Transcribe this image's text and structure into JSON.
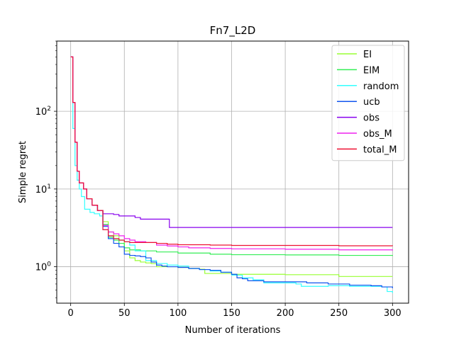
{
  "chart_data": {
    "type": "line",
    "title": "Fn7_L2D",
    "xlabel": "Number of iterations",
    "ylabel": "Simple regret",
    "xlim": [
      -13,
      315
    ],
    "ylim": [
      0.34,
      800
    ],
    "yscale": "log",
    "grid": true,
    "legend_position": "top-right",
    "x_ticks": [
      0,
      50,
      100,
      150,
      200,
      250,
      300
    ],
    "x_tick_labels": [
      "0",
      "50",
      "100",
      "150",
      "200",
      "250",
      "300"
    ],
    "y_ticks": [
      1,
      10,
      100
    ],
    "y_tick_labels": [
      "10^0",
      "10^1",
      "10^2"
    ],
    "series": [
      {
        "name": "EI",
        "color": "#99ff33",
        "points": [
          [
            0,
            500
          ],
          [
            2,
            130
          ],
          [
            4,
            40
          ],
          [
            6,
            17
          ],
          [
            8,
            12
          ],
          [
            12,
            10
          ],
          [
            15,
            7.5
          ],
          [
            20,
            6.2
          ],
          [
            25,
            5.3
          ],
          [
            30,
            3.8
          ],
          [
            35,
            2.8
          ],
          [
            40,
            2.5
          ],
          [
            45,
            2.2
          ],
          [
            50,
            1.6
          ],
          [
            55,
            1.3
          ],
          [
            60,
            1.2
          ],
          [
            65,
            1.15
          ],
          [
            70,
            1.12
          ],
          [
            75,
            1.1
          ],
          [
            80,
            1.0
          ],
          [
            90,
            1.0
          ],
          [
            100,
            0.98
          ],
          [
            110,
            0.95
          ],
          [
            120,
            0.93
          ],
          [
            125,
            0.82
          ],
          [
            150,
            0.8
          ],
          [
            180,
            0.8
          ],
          [
            200,
            0.79
          ],
          [
            230,
            0.79
          ],
          [
            250,
            0.75
          ],
          [
            300,
            0.75
          ]
        ]
      },
      {
        "name": "EIM",
        "color": "#33ee55",
        "points": [
          [
            0,
            500
          ],
          [
            2,
            130
          ],
          [
            4,
            40
          ],
          [
            6,
            17
          ],
          [
            8,
            12
          ],
          [
            12,
            10
          ],
          [
            15,
            7.5
          ],
          [
            20,
            6.2
          ],
          [
            25,
            5.3
          ],
          [
            30,
            3.5
          ],
          [
            35,
            2.4
          ],
          [
            40,
            2.2
          ],
          [
            45,
            2.0
          ],
          [
            50,
            1.75
          ],
          [
            55,
            1.65
          ],
          [
            65,
            1.6
          ],
          [
            80,
            1.55
          ],
          [
            100,
            1.5
          ],
          [
            120,
            1.5
          ],
          [
            130,
            1.45
          ],
          [
            150,
            1.43
          ],
          [
            200,
            1.42
          ],
          [
            250,
            1.4
          ],
          [
            300,
            1.38
          ]
        ]
      },
      {
        "name": "random",
        "color": "#33ffff",
        "points": [
          [
            0,
            500
          ],
          [
            2,
            60
          ],
          [
            4,
            20
          ],
          [
            6,
            13
          ],
          [
            8,
            10
          ],
          [
            10,
            8
          ],
          [
            13,
            5.5
          ],
          [
            18,
            5.0
          ],
          [
            22,
            4.8
          ],
          [
            27,
            4.5
          ],
          [
            30,
            3.0
          ],
          [
            35,
            2.5
          ],
          [
            40,
            2.3
          ],
          [
            45,
            2.2
          ],
          [
            50,
            2.1
          ],
          [
            55,
            1.9
          ],
          [
            60,
            1.6
          ],
          [
            70,
            1.2
          ],
          [
            80,
            1.1
          ],
          [
            90,
            1.05
          ],
          [
            100,
            1.02
          ],
          [
            110,
            0.95
          ],
          [
            120,
            0.92
          ],
          [
            130,
            0.88
          ],
          [
            140,
            0.85
          ],
          [
            150,
            0.78
          ],
          [
            160,
            0.72
          ],
          [
            170,
            0.68
          ],
          [
            180,
            0.62
          ],
          [
            200,
            0.62
          ],
          [
            210,
            0.6
          ],
          [
            215,
            0.56
          ],
          [
            240,
            0.57
          ],
          [
            260,
            0.56
          ],
          [
            280,
            0.56
          ],
          [
            290,
            0.55
          ],
          [
            295,
            0.48
          ],
          [
            300,
            0.46
          ]
        ]
      },
      {
        "name": "ucb",
        "color": "#1155ee",
        "points": [
          [
            0,
            500
          ],
          [
            2,
            130
          ],
          [
            4,
            40
          ],
          [
            6,
            17
          ],
          [
            8,
            12
          ],
          [
            12,
            10
          ],
          [
            15,
            7.5
          ],
          [
            20,
            6.2
          ],
          [
            25,
            5.3
          ],
          [
            30,
            3.3
          ],
          [
            35,
            2.3
          ],
          [
            40,
            2.0
          ],
          [
            45,
            1.8
          ],
          [
            50,
            1.45
          ],
          [
            55,
            1.4
          ],
          [
            60,
            1.38
          ],
          [
            65,
            1.35
          ],
          [
            70,
            1.3
          ],
          [
            75,
            1.15
          ],
          [
            80,
            1.05
          ],
          [
            85,
            1.02
          ],
          [
            90,
            1.0
          ],
          [
            100,
            0.98
          ],
          [
            110,
            0.95
          ],
          [
            120,
            0.92
          ],
          [
            130,
            0.9
          ],
          [
            140,
            0.85
          ],
          [
            150,
            0.8
          ],
          [
            155,
            0.72
          ],
          [
            160,
            0.7
          ],
          [
            165,
            0.66
          ],
          [
            180,
            0.64
          ],
          [
            200,
            0.64
          ],
          [
            220,
            0.62
          ],
          [
            240,
            0.6
          ],
          [
            260,
            0.58
          ],
          [
            280,
            0.57
          ],
          [
            290,
            0.55
          ],
          [
            300,
            0.53
          ]
        ]
      },
      {
        "name": "obs",
        "color": "#8800ee",
        "points": [
          [
            0,
            500
          ],
          [
            2,
            130
          ],
          [
            4,
            40
          ],
          [
            6,
            17
          ],
          [
            8,
            12
          ],
          [
            12,
            10
          ],
          [
            15,
            7.5
          ],
          [
            20,
            6.2
          ],
          [
            25,
            5.3
          ],
          [
            30,
            4.8
          ],
          [
            40,
            4.7
          ],
          [
            45,
            4.5
          ],
          [
            60,
            4.3
          ],
          [
            65,
            4.1
          ],
          [
            92,
            4.1
          ],
          [
            92,
            3.2
          ],
          [
            150,
            3.2
          ],
          [
            200,
            3.2
          ],
          [
            250,
            3.2
          ],
          [
            300,
            3.2
          ]
        ]
      },
      {
        "name": "obs_M",
        "color": "#ee22ee",
        "points": [
          [
            0,
            500
          ],
          [
            2,
            130
          ],
          [
            4,
            40
          ],
          [
            6,
            17
          ],
          [
            8,
            12
          ],
          [
            12,
            10
          ],
          [
            15,
            7.5
          ],
          [
            20,
            6.2
          ],
          [
            25,
            5.3
          ],
          [
            30,
            3.4
          ],
          [
            35,
            2.8
          ],
          [
            40,
            2.65
          ],
          [
            45,
            2.5
          ],
          [
            50,
            2.3
          ],
          [
            55,
            2.2
          ],
          [
            60,
            2.1
          ],
          [
            70,
            2.05
          ],
          [
            80,
            1.9
          ],
          [
            90,
            1.85
          ],
          [
            100,
            1.8
          ],
          [
            110,
            1.75
          ],
          [
            130,
            1.72
          ],
          [
            150,
            1.7
          ],
          [
            200,
            1.68
          ],
          [
            250,
            1.65
          ],
          [
            300,
            1.62
          ]
        ]
      },
      {
        "name": "total_M",
        "color": "#ee1133",
        "points": [
          [
            0,
            500
          ],
          [
            2,
            130
          ],
          [
            4,
            40
          ],
          [
            6,
            17
          ],
          [
            8,
            12
          ],
          [
            12,
            10
          ],
          [
            15,
            7.5
          ],
          [
            20,
            6.2
          ],
          [
            25,
            5.3
          ],
          [
            30,
            3.0
          ],
          [
            35,
            2.5
          ],
          [
            40,
            2.3
          ],
          [
            45,
            2.2
          ],
          [
            50,
            2.1
          ],
          [
            55,
            2.05
          ],
          [
            70,
            2.05
          ],
          [
            80,
            2.0
          ],
          [
            90,
            1.95
          ],
          [
            100,
            1.92
          ],
          [
            130,
            1.9
          ],
          [
            150,
            1.88
          ],
          [
            200,
            1.88
          ],
          [
            250,
            1.86
          ],
          [
            300,
            1.85
          ]
        ]
      }
    ]
  }
}
